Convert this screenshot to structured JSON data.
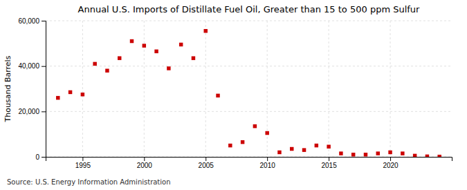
{
  "chart_data": {
    "type": "scatter",
    "title": "Annual U.S. Imports of Distillate Fuel Oil, Greater than 15 to 500 ppm Sulfur",
    "y_label": "Thousand Barrels",
    "annotations": [
      "Source: U.S. Energy Information Administration"
    ],
    "x": [
      1993,
      1994,
      1995,
      1996,
      1997,
      1998,
      1999,
      2000,
      2001,
      2002,
      2003,
      2004,
      2005,
      2006,
      2007,
      2008,
      2009,
      2010,
      2011,
      2012,
      2013,
      2014,
      2015,
      2016,
      2017,
      2018,
      2019,
      2020,
      2021,
      2022,
      2023,
      2024
    ],
    "values": [
      26000,
      28500,
      27500,
      41000,
      38000,
      43500,
      51000,
      49000,
      46500,
      39000,
      49500,
      43500,
      55500,
      27000,
      5000,
      6500,
      13500,
      10500,
      2000,
      3500,
      3000,
      5000,
      4500,
      1500,
      1000,
      1000,
      1500,
      2000,
      1500,
      500,
      200,
      100
    ],
    "color": "#cc0000",
    "marker": "square",
    "xlim": [
      1992.0,
      2025.0
    ],
    "xticks": [
      1995,
      2000,
      2005,
      2010,
      2015,
      2020
    ],
    "ylim": [
      0,
      60000
    ],
    "yticks": [
      0,
      {
        "value": 20000,
        "label": "20,000"
      },
      {
        "value": 40000,
        "label": "40,000"
      },
      {
        "value": 60000,
        "label": "60,000"
      }
    ],
    "grid": true
  }
}
